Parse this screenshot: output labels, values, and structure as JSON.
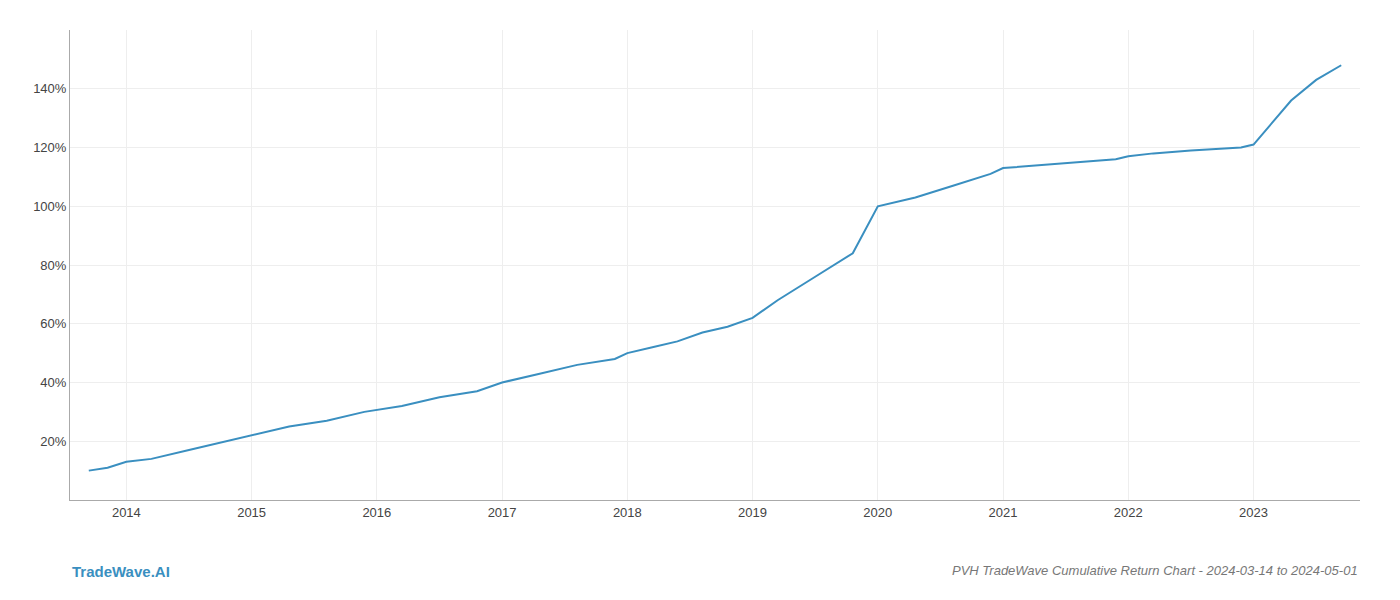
{
  "chart_data": {
    "type": "line",
    "title": "PVH TradeWave Cumulative Return Chart - 2024-03-14 to 2024-05-01",
    "annotations": [
      {
        "text": "TradeWave.AI"
      }
    ],
    "color": "#3a8fc0",
    "grid": true,
    "x": [
      2013.7,
      2013.85,
      2014.0,
      2014.2,
      2014.5,
      2014.8,
      2015.0,
      2015.3,
      2015.6,
      2015.9,
      2016.2,
      2016.5,
      2016.8,
      2017.0,
      2017.3,
      2017.6,
      2017.9,
      2018.0,
      2018.2,
      2018.4,
      2018.6,
      2018.8,
      2019.0,
      2019.2,
      2019.5,
      2019.8,
      2020.0,
      2020.3,
      2020.6,
      2020.9,
      2021.0,
      2021.3,
      2021.6,
      2021.9,
      2022.0,
      2022.2,
      2022.5,
      2022.7,
      2022.9,
      2023.0,
      2023.1,
      2023.3,
      2023.5,
      2023.7
    ],
    "values": [
      10,
      11,
      13,
      14,
      17,
      20,
      22,
      25,
      27,
      30,
      32,
      35,
      37,
      40,
      43,
      46,
      48,
      50,
      52,
      54,
      57,
      59,
      62,
      68,
      76,
      84,
      100,
      103,
      107,
      111,
      113,
      114,
      115,
      116,
      117,
      118,
      119,
      119.5,
      120,
      121,
      126,
      136,
      143,
      148
    ],
    "xlim": [
      2013.55,
      2023.85
    ],
    "xticks": [
      2014,
      2015,
      2016,
      2017,
      2018,
      2019,
      2020,
      2021,
      2022,
      2023
    ],
    "ylim": [
      0,
      160
    ],
    "yticks": [
      {
        "value": 20,
        "label": "20%"
      },
      {
        "value": 40,
        "label": "40%"
      },
      {
        "value": 60,
        "label": "60%"
      },
      {
        "value": 80,
        "label": "80%"
      },
      {
        "value": 100,
        "label": "100%"
      },
      {
        "value": 120,
        "label": "120%"
      },
      {
        "value": 140,
        "label": "140%"
      }
    ]
  }
}
